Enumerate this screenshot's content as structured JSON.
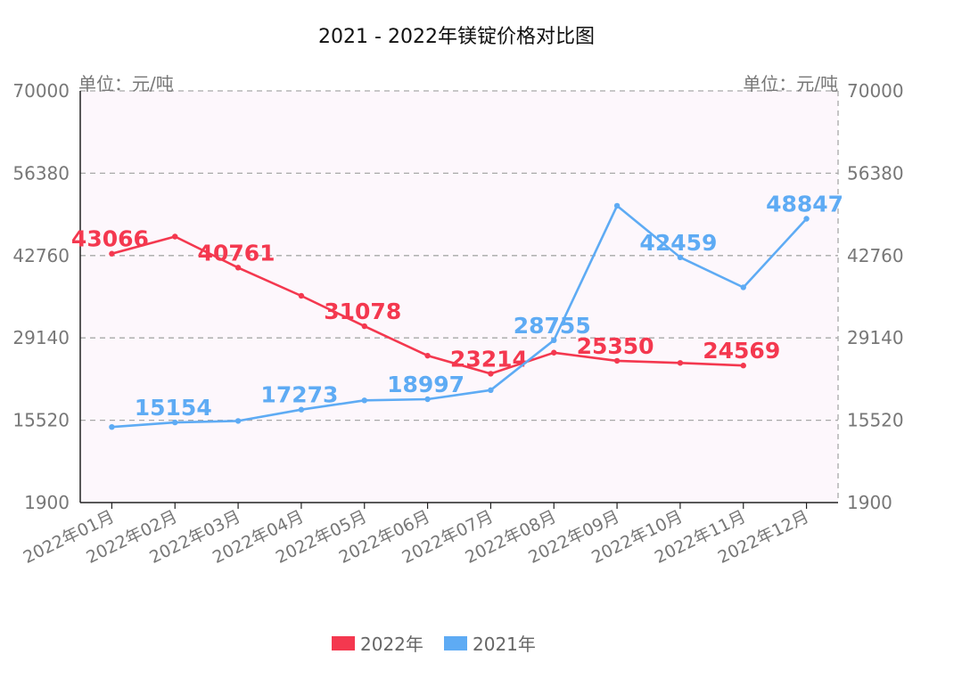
{
  "chart_data": {
    "type": "line",
    "title": "2021 - 2022年镁锭价格对比图",
    "ylabel_left": "单位：元/吨",
    "ylabel_right": "单位：元/吨",
    "ylim": [
      1900,
      70000
    ],
    "yticks": [
      "70000",
      "56380",
      "42760",
      "29140",
      "15520",
      "1900"
    ],
    "categories": [
      "2022年01月",
      "2022年02月",
      "2022年03月",
      "2022年04月",
      "2022年05月",
      "2022年06月",
      "2022年07月",
      "2022年08月",
      "2022年09月",
      "2022年10月",
      "2022年11月",
      "2022年12月"
    ],
    "grid": true,
    "legend_position": "bottom",
    "series": [
      {
        "name": "2022年",
        "color": "#f4384f",
        "values": [
          43066,
          45900,
          40761,
          36100,
          31078,
          26200,
          23214,
          26700,
          25350,
          25000,
          24569,
          null
        ],
        "labels": [
          "43066",
          null,
          "40761",
          null,
          "31078",
          null,
          "23214",
          null,
          "25350",
          null,
          "24569",
          null
        ]
      },
      {
        "name": "2021年",
        "color": "#5eabf4",
        "values": [
          14400,
          15154,
          15400,
          17273,
          18800,
          18997,
          20500,
          28755,
          51000,
          42459,
          37500,
          48847
        ],
        "labels": [
          null,
          "15154",
          null,
          "17273",
          null,
          "18997",
          null,
          "28755",
          null,
          "42459",
          null,
          "48847"
        ]
      }
    ]
  }
}
